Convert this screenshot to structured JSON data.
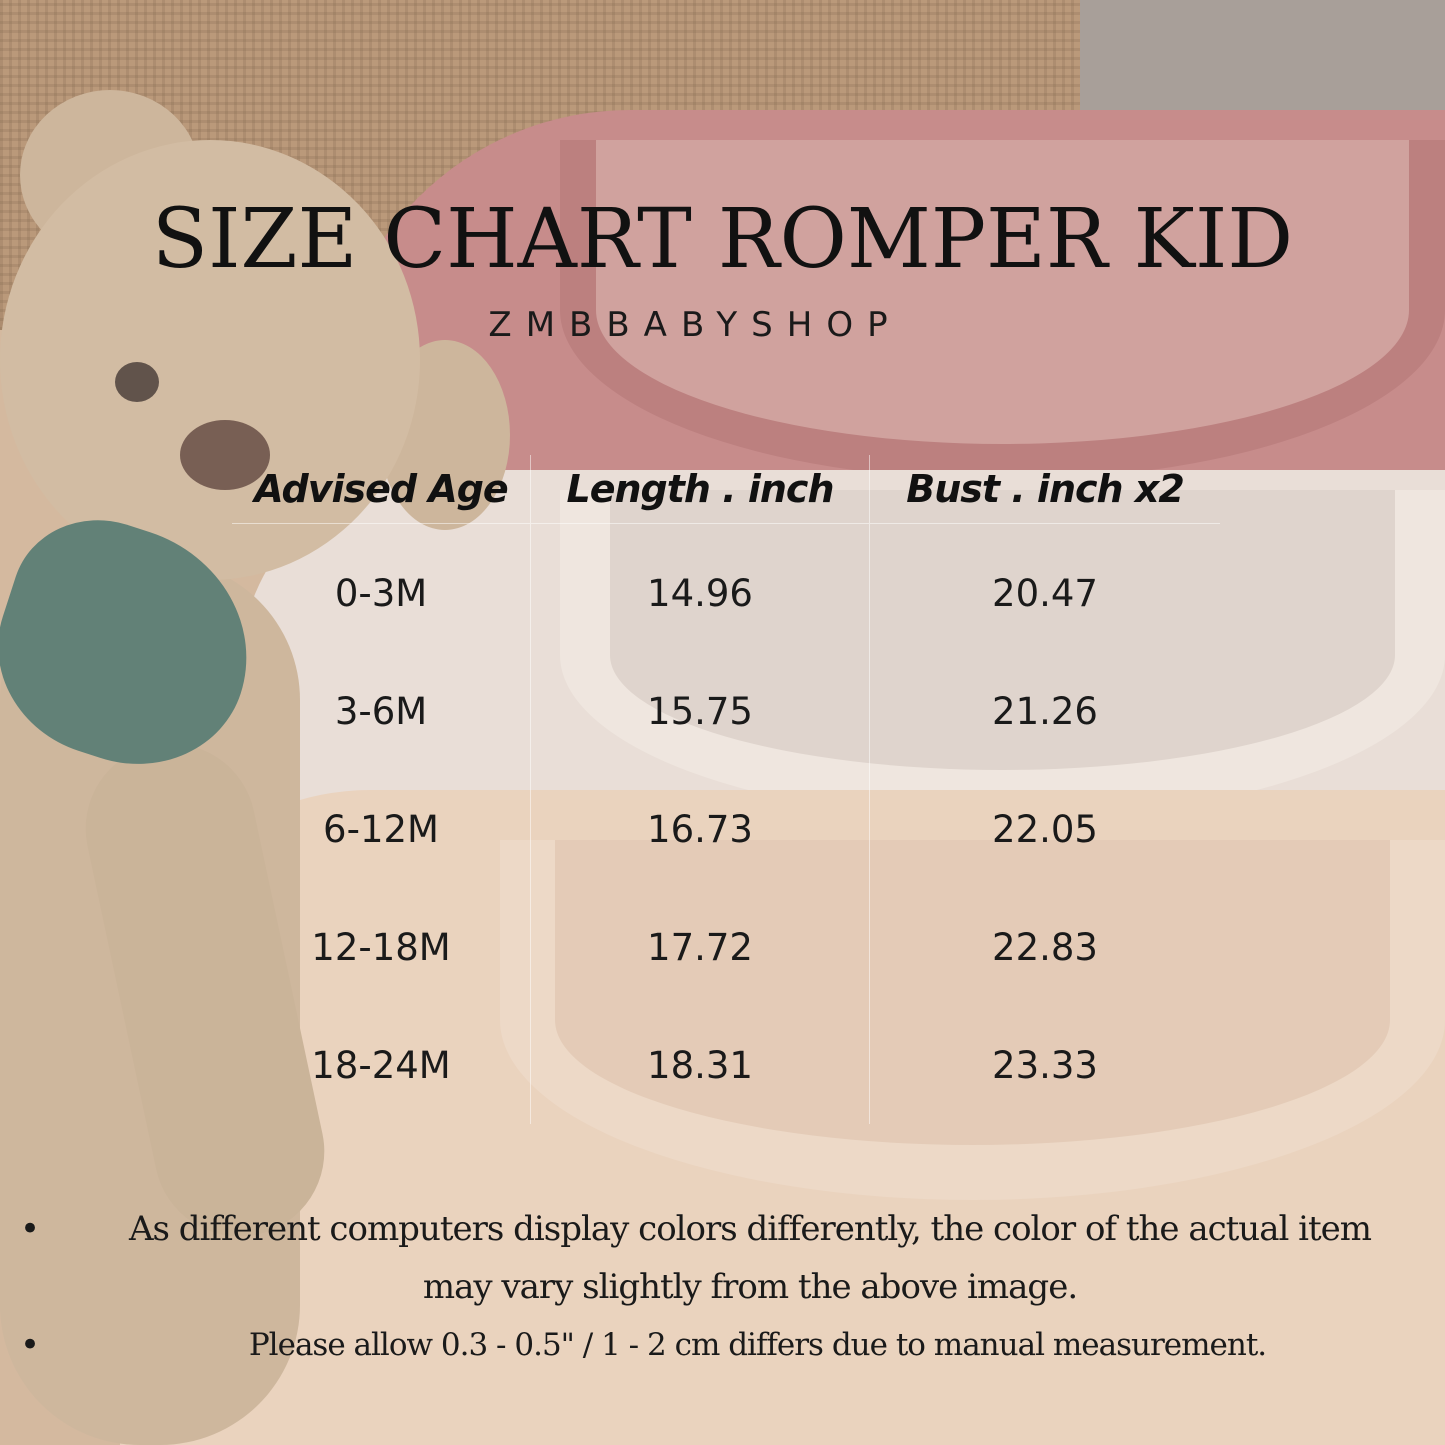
{
  "title": "SIZE CHART ROMPER KID",
  "brand": "ZMBBABYSHOP",
  "table": {
    "headers": [
      "Advised Age",
      "Length . inch",
      "Bust . inch x2"
    ],
    "rows": [
      [
        "0-3M",
        "14.96",
        "20.47"
      ],
      [
        "3-6M",
        "15.75",
        "21.26"
      ],
      [
        "6-12M",
        "16.73",
        "22.05"
      ],
      [
        "12-18M",
        "17.72",
        "22.83"
      ],
      [
        "18-24M",
        "18.31",
        "23.33"
      ]
    ]
  },
  "notes": [
    "As different computers display colors differently, the color of the actual item may vary slightly from the above image.",
    "Please allow 0.3 - 0.5\" / 1 - 2 cm differs due to manual measurement."
  ],
  "bullet": "•",
  "colors": {
    "text": "#111111",
    "pink_garment": "#b86b6e",
    "white_garment": "#e6ddd7",
    "cream_garment": "#e8cdb5",
    "scarf": "#2b5c53"
  }
}
